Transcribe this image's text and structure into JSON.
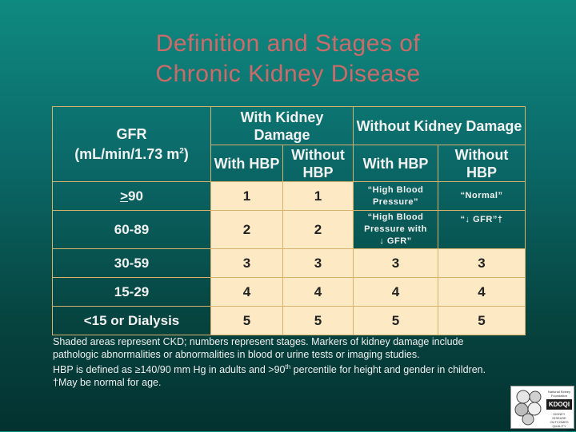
{
  "slide": {
    "title_line1": "Definition and Stages of",
    "title_line2": "Chronic Kidney Disease"
  },
  "table": {
    "gfr_header": "GFR",
    "gfr_unit": "(mL/min/1.73 m",
    "gfr_unit_sup": "2",
    "gfr_unit_close": ")",
    "with_damage": "With Kidney Damage",
    "without_damage": "Without Kidney Damage",
    "with_hbp": "With HBP",
    "without_hbp": "Without HBP",
    "rows": [
      {
        "gfr_prefix": ">",
        "gfr": "90",
        "c1": "1",
        "c2": "1",
        "c3": "“High Blood Pressure”",
        "c4": "“Normal”"
      },
      {
        "gfr": "60-89",
        "c1": "2",
        "c2": "2",
        "c3": "“High Blood Pressure with",
        "c3b": "↓ GFR”",
        "c4": "“↓ GFR”†"
      },
      {
        "gfr": "30-59",
        "c1": "3",
        "c2": "3",
        "c3": "3",
        "c4": "3"
      },
      {
        "gfr": "15-29",
        "c1": "4",
        "c2": "4",
        "c3": "4",
        "c4": "4"
      },
      {
        "gfr": "<15 or Dialysis",
        "c1": "5",
        "c2": "5",
        "c3": "5",
        "c4": "5"
      }
    ]
  },
  "footer": {
    "line1": "Shaded areas represent CKD; numbers represent stages. Markers of kidney damage include pathologic abnormalities or abnormalities in blood or urine tests or imaging studies.",
    "line2a": "HBP is defined as ≥140/90 mm Hg in adults and >90",
    "line2sup": "th",
    "line2b": " percentile for height and gender in children.",
    "line3": "†May be normal for age."
  },
  "logo": {
    "badge": "KDOQI",
    "top_text": "National Kidney Foundation",
    "bottom_text": "KIDNEY DISEASE OUTCOMES QUALITY INITIATIVE"
  },
  "colors": {
    "title": "#cc6a6a",
    "shade": "#fde9c4",
    "grid": "#d8b26a"
  }
}
